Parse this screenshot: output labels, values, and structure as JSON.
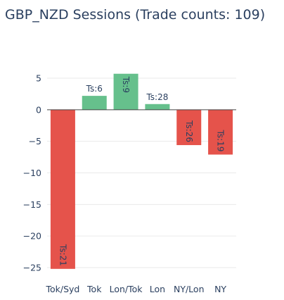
{
  "chart_data": {
    "type": "bar",
    "title": "GBP_NZD Sessions (Trade counts: 109)",
    "categories": [
      "Tok/Syd",
      "Tok",
      "Lon/Tok",
      "Lon",
      "NY/Lon",
      "NY"
    ],
    "values": [
      -25.2,
      2.2,
      5.7,
      0.9,
      -5.6,
      -7.1
    ],
    "data_labels": [
      "Ts:21",
      "Ts:6",
      "Ts:9",
      "Ts:28",
      "Ts:26",
      "Ts:19"
    ],
    "xlabel": "",
    "ylabel": "",
    "ylim": [
      -25.5,
      6
    ],
    "yticks": [
      5,
      0,
      -5,
      -10,
      -15,
      -20,
      -25
    ],
    "ytick_labels": [
      "5",
      "0",
      "−5",
      "−10",
      "−15",
      "−20",
      "−25"
    ],
    "grid": true,
    "colors": {
      "positive": "#66c08c",
      "negative": "#e5534b",
      "zero_line": "#444444",
      "grid": "#eaeaea",
      "text": "#2a3f5f"
    }
  }
}
